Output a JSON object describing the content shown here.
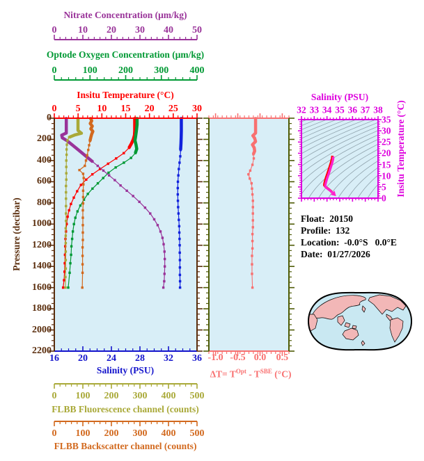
{
  "info": {
    "float_label": "Float:",
    "float_value": "20150",
    "profile_label": "Profile:",
    "profile_value": "132",
    "location_label": "Location:",
    "location_value": "-0.0°S   0.0°E",
    "date_label": "Date:",
    "date_value": "01/27/2026"
  },
  "chart_data": {
    "type": "line",
    "main_plot": {
      "type": "line",
      "background": "#D8EEF7",
      "pressure_axis": {
        "label": "Pressure (decibar)",
        "color": "#5A2D0C",
        "ylim": [
          0,
          2200
        ],
        "ticks": [
          0,
          200,
          400,
          600,
          800,
          1000,
          1200,
          1400,
          1600,
          1800,
          2000,
          2200
        ],
        "minor_step": 50
      },
      "axes": {
        "nitrate": {
          "title": "Nitrate Concentration (μm/kg)",
          "color": "#993399",
          "min": 0,
          "max": 50,
          "ticks": [
            0,
            10,
            20,
            30,
            40,
            50
          ],
          "minor_step": 2
        },
        "oxygen": {
          "title": "Optode Oxygen Concentration (μm/kg)",
          "color": "#009934",
          "min": 0,
          "max": 400,
          "ticks": [
            0,
            100,
            200,
            300,
            400
          ],
          "minor_step": 20
        },
        "temperature": {
          "title": "Insitu Temperature (°C)",
          "color": "#FF0000",
          "min": 0,
          "max": 30,
          "ticks": [
            0,
            5,
            10,
            15,
            20,
            25,
            30
          ],
          "minor_step": 1
        },
        "salinity": {
          "title": "Salinity (PSU)",
          "color": "#1515CC",
          "min": 16,
          "max": 36,
          "ticks": [
            16,
            20,
            24,
            28,
            32,
            36
          ],
          "minor_step": 1
        },
        "fluorescence": {
          "title": "FLBB Fluorescence channel (counts)",
          "color": "#A9A938",
          "min": 0,
          "max": 500,
          "ticks": [
            0,
            100,
            200,
            300,
            400,
            500
          ],
          "minor_step": 20
        },
        "backscatter": {
          "title": "FLBB Backscatter channel (counts)",
          "color": "#D2691E",
          "min": 0,
          "max": 500,
          "ticks": [
            0,
            100,
            200,
            300,
            400,
            500
          ],
          "minor_step": 20
        }
      },
      "series": [
        {
          "name": "salinity",
          "axis": "salinity",
          "color": "#1122DD",
          "thick_to": 350,
          "points": [
            [
              33.8,
              0
            ],
            [
              33.8,
              60
            ],
            [
              33.8,
              120
            ],
            [
              33.78,
              180
            ],
            [
              33.75,
              240
            ],
            [
              33.7,
              300
            ],
            [
              33.65,
              360
            ],
            [
              33.55,
              420
            ],
            [
              33.45,
              480
            ],
            [
              33.38,
              540
            ],
            [
              33.32,
              600
            ],
            [
              33.3,
              660
            ],
            [
              33.3,
              720
            ],
            [
              33.32,
              780
            ],
            [
              33.35,
              840
            ],
            [
              33.4,
              900
            ],
            [
              33.45,
              960
            ],
            [
              33.5,
              1020
            ],
            [
              33.52,
              1080
            ],
            [
              33.55,
              1140
            ],
            [
              33.57,
              1200
            ],
            [
              33.58,
              1270
            ],
            [
              33.6,
              1340
            ],
            [
              33.6,
              1410
            ],
            [
              33.6,
              1480
            ],
            [
              33.62,
              1540
            ],
            [
              33.62,
              1600
            ]
          ]
        },
        {
          "name": "temperature",
          "axis": "temperature",
          "color": "#FF0000",
          "thick_to": 320,
          "points": [
            [
              16.9,
              0
            ],
            [
              16.9,
              60
            ],
            [
              16.9,
              120
            ],
            [
              16.85,
              160
            ],
            [
              16.6,
              200
            ],
            [
              16.2,
              240
            ],
            [
              15.7,
              280
            ],
            [
              14.6,
              330
            ],
            [
              13.0,
              380
            ],
            [
              11.3,
              430
            ],
            [
              9.6,
              480
            ],
            [
              8.0,
              530
            ],
            [
              6.7,
              580
            ],
            [
              5.6,
              630
            ],
            [
              4.8,
              690
            ],
            [
              4.1,
              750
            ],
            [
              3.5,
              810
            ],
            [
              3.1,
              870
            ],
            [
              2.8,
              930
            ],
            [
              2.6,
              1000
            ],
            [
              2.45,
              1070
            ],
            [
              2.35,
              1140
            ],
            [
              2.3,
              1210
            ],
            [
              2.25,
              1290
            ],
            [
              2.2,
              1370
            ],
            [
              2.15,
              1450
            ],
            [
              2.05,
              1530
            ],
            [
              1.85,
              1600
            ]
          ]
        },
        {
          "name": "oxygen",
          "axis": "oxygen",
          "color": "#009934",
          "thick_to": 360,
          "points": [
            [
              232,
              0
            ],
            [
              232,
              60
            ],
            [
              230,
              120
            ],
            [
              228,
              170
            ],
            [
              226,
              210
            ],
            [
              229,
              250
            ],
            [
              231,
              290
            ],
            [
              227,
              330
            ],
            [
              215,
              375
            ],
            [
              195,
              420
            ],
            [
              172,
              465
            ],
            [
              152,
              515
            ],
            [
              137,
              565
            ],
            [
              122,
              615
            ],
            [
              107,
              665
            ],
            [
              94,
              715
            ],
            [
              83,
              770
            ],
            [
              73,
              825
            ],
            [
              65,
              880
            ],
            [
              59,
              940
            ],
            [
              55,
              1000
            ],
            [
              52,
              1070
            ],
            [
              50,
              1140
            ],
            [
              48,
              1210
            ],
            [
              47,
              1290
            ],
            [
              45,
              1370
            ],
            [
              43,
              1460
            ],
            [
              39,
              1600
            ]
          ]
        },
        {
          "name": "nitrate",
          "axis": "nitrate",
          "color": "#993399",
          "thick_to": 430,
          "points": [
            [
              4.2,
              0
            ],
            [
              4.2,
              50
            ],
            [
              4.2,
              100
            ],
            [
              4.2,
              140
            ],
            [
              2.6,
              160
            ],
            [
              2.8,
              185
            ],
            [
              4.6,
              215
            ],
            [
              6.2,
              250
            ],
            [
              8.0,
              290
            ],
            [
              9.8,
              330
            ],
            [
              11.6,
              370
            ],
            [
              13.4,
              410
            ],
            [
              15.2,
              450
            ],
            [
              17.2,
              495
            ],
            [
              19.2,
              540
            ],
            [
              21.2,
              585
            ],
            [
              23.2,
              635
            ],
            [
              25.4,
              685
            ],
            [
              27.6,
              735
            ],
            [
              29.8,
              790
            ],
            [
              31.8,
              845
            ],
            [
              33.6,
              900
            ],
            [
              35.0,
              955
            ],
            [
              36.2,
              1010
            ],
            [
              37.2,
              1070
            ],
            [
              37.9,
              1130
            ],
            [
              38.3,
              1190
            ],
            [
              38.6,
              1260
            ],
            [
              38.7,
              1330
            ],
            [
              38.7,
              1400
            ],
            [
              38.6,
              1470
            ],
            [
              38.5,
              1540
            ],
            [
              38.2,
              1600
            ]
          ]
        },
        {
          "name": "fluorescence",
          "axis": "fluorescence",
          "color": "#A9A938",
          "thick_to": 200,
          "points": [
            [
              83,
              0
            ],
            [
              83,
              40
            ],
            [
              83,
              80
            ],
            [
              83,
              115
            ],
            [
              90,
              132
            ],
            [
              95,
              142
            ],
            [
              72,
              158
            ],
            [
              52,
              180
            ],
            [
              46,
              210
            ],
            [
              44,
              250
            ],
            [
              43,
              295
            ],
            [
              43,
              345
            ],
            [
              42,
              400
            ],
            [
              42,
              460
            ],
            [
              42,
              520
            ],
            [
              42,
              580
            ],
            [
              41,
              640
            ],
            [
              41,
              700
            ],
            [
              41,
              760
            ],
            [
              41,
              830
            ],
            [
              41,
              900
            ],
            [
              41,
              970
            ],
            [
              40,
              1040
            ],
            [
              40,
              1110
            ],
            [
              40,
              1180
            ],
            [
              40,
              1260
            ],
            [
              40,
              1340
            ],
            [
              40,
              1420
            ],
            [
              39,
              1500
            ],
            [
              39,
              1600
            ]
          ]
        },
        {
          "name": "backscatter",
          "axis": "backscatter",
          "color": "#D2691E",
          "thick_to": 230,
          "points": [
            [
              127,
              0
            ],
            [
              131,
              25
            ],
            [
              126,
              50
            ],
            [
              133,
              75
            ],
            [
              128,
              100
            ],
            [
              135,
              125
            ],
            [
              131,
              150
            ],
            [
              128,
              180
            ],
            [
              125,
              215
            ],
            [
              122,
              255
            ],
            [
              119,
              300
            ],
            [
              115,
              350
            ],
            [
              111,
              400
            ],
            [
              107,
              450
            ],
            [
              88,
              490
            ],
            [
              101,
              525
            ],
            [
              103,
              565
            ],
            [
              102,
              625
            ],
            [
              101,
              685
            ],
            [
              101,
              745
            ],
            [
              101,
              805
            ],
            [
              100,
              870
            ],
            [
              100,
              940
            ],
            [
              100,
              1010
            ],
            [
              100,
              1080
            ],
            [
              100,
              1150
            ],
            [
              99,
              1220
            ],
            [
              99,
              1300
            ],
            [
              99,
              1380
            ],
            [
              99,
              1460
            ],
            [
              98,
              1600
            ]
          ]
        }
      ]
    },
    "delta_t_plot": {
      "type": "line",
      "background": "#D8EEF7",
      "xlabel_parts": [
        "ΔT= T",
        "Opt",
        " - T",
        "SBE",
        " (°C)"
      ],
      "color": "#F87070",
      "y_axis_color": "#4E5B06",
      "xlim": [
        -1.15,
        0.65
      ],
      "ticks": {
        "values": [
          -1.0,
          -0.5,
          0.0,
          0.5
        ],
        "labels": [
          "-1.0",
          "-0.5",
          "0.0",
          "0.5"
        ]
      },
      "minor_step": 0.1,
      "thick_to": 360,
      "points": [
        [
          -0.1,
          0
        ],
        [
          -0.1,
          50
        ],
        [
          -0.1,
          100
        ],
        [
          -0.1,
          140
        ],
        [
          -0.16,
          165
        ],
        [
          -0.12,
          190
        ],
        [
          -0.1,
          220
        ],
        [
          -0.17,
          250
        ],
        [
          -0.13,
          280
        ],
        [
          -0.12,
          310
        ],
        [
          -0.15,
          340
        ],
        [
          -0.14,
          380
        ],
        [
          -0.17,
          440
        ],
        [
          -0.22,
          495
        ],
        [
          -0.26,
          530
        ],
        [
          -0.23,
          570
        ],
        [
          -0.19,
          615
        ],
        [
          -0.18,
          665
        ],
        [
          -0.17,
          720
        ],
        [
          -0.16,
          780
        ],
        [
          -0.16,
          840
        ],
        [
          -0.16,
          900
        ],
        [
          -0.16,
          965
        ],
        [
          -0.16,
          1030
        ],
        [
          -0.17,
          1095
        ],
        [
          -0.17,
          1160
        ],
        [
          -0.17,
          1230
        ],
        [
          -0.18,
          1300
        ],
        [
          -0.18,
          1380
        ],
        [
          -0.18,
          1470
        ],
        [
          -0.17,
          1600
        ]
      ]
    },
    "ts_plot": {
      "type": "line",
      "background": "#D8EEF7",
      "xlabel": "Salinity (PSU)",
      "ylabel": "Insitu Temperature (°C)",
      "color": "#DD00DD",
      "curve_color": "#FF22CC",
      "curve_under_color": "#FF0000",
      "contour_color": "#8FA2AC",
      "xlim": [
        32,
        38
      ],
      "ylim": [
        0,
        35
      ],
      "x_ticks": [
        32,
        33,
        34,
        35,
        36,
        37,
        38
      ],
      "x_minor_step": 0.25,
      "y_ticks": [
        0,
        5,
        10,
        15,
        20,
        25,
        30,
        35
      ],
      "y_minor_step": 1,
      "curve": [
        [
          34.5,
          18.5
        ],
        [
          34.47,
          17.2
        ],
        [
          34.4,
          15.6
        ],
        [
          34.3,
          13.8
        ],
        [
          34.2,
          12.0
        ],
        [
          34.1,
          10.3
        ],
        [
          34.0,
          8.7
        ],
        [
          33.93,
          7.3
        ],
        [
          33.88,
          6.2
        ],
        [
          33.86,
          5.4
        ],
        [
          33.95,
          4.7
        ],
        [
          34.08,
          4.1
        ],
        [
          34.22,
          3.5
        ],
        [
          34.35,
          2.9
        ],
        [
          34.44,
          2.4
        ]
      ]
    },
    "world_map": {
      "ocean_color": "#C9E8F2",
      "land_color": "#F2B7B7",
      "outline_color": "#000000"
    }
  }
}
